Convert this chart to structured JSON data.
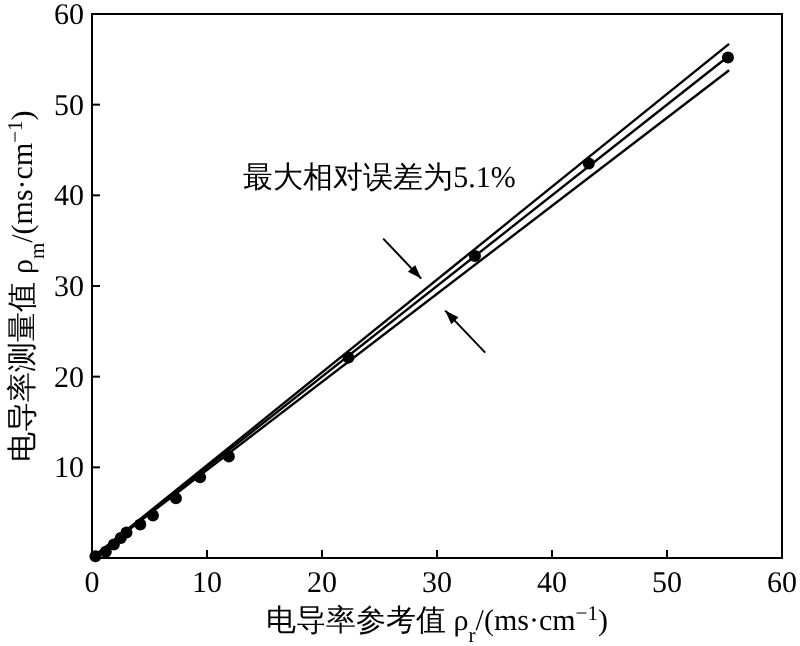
{
  "chart_data": {
    "type": "scatter",
    "xlabel": "电导率参考值 ρ$_{r}$/(ms·cm$^{−1}$)",
    "ylabel": "电导率测量值 ρ$_{m}$/(ms·cm$^{−1}$)",
    "annotations": [
      "最大相对误差为5.1%"
    ],
    "xlim": [
      0,
      60
    ],
    "xticks": [
      0,
      10,
      20,
      30,
      40,
      50,
      60
    ],
    "ylim": [
      0,
      60
    ],
    "yticks": [
      {
        "value": 0,
        "label": null
      },
      10,
      20,
      30,
      40,
      50,
      60
    ],
    "grid": false,
    "marker": "circle",
    "series": [
      {
        "type": "scatter",
        "color": "#000000",
        "x": [
          0.3,
          1.2,
          1.9,
          2.5,
          3,
          4.2,
          5.3,
          7.3,
          9.4,
          11.9,
          22.3,
          33.3,
          43.2,
          55.3
        ],
        "values": [
          0.2,
          0.7,
          1.5,
          2.2,
          2.8,
          3.7,
          4.7,
          6.6,
          8.9,
          11.2,
          22.1,
          33.3,
          43.5,
          55.2
        ]
      },
      {
        "type": "line",
        "color": "#000000",
        "marker": "none",
        "x": [
          0,
          55.4
        ],
        "values": [
          0,
          56.7
        ]
      },
      {
        "type": "line",
        "color": "#000000",
        "marker": "none",
        "x": [
          0,
          55.4
        ],
        "values": [
          0,
          55.4
        ]
      },
      {
        "type": "line",
        "color": "#000000",
        "marker": "none",
        "x": [
          0,
          55.4
        ],
        "values": [
          0,
          53.8
        ]
      }
    ]
  }
}
